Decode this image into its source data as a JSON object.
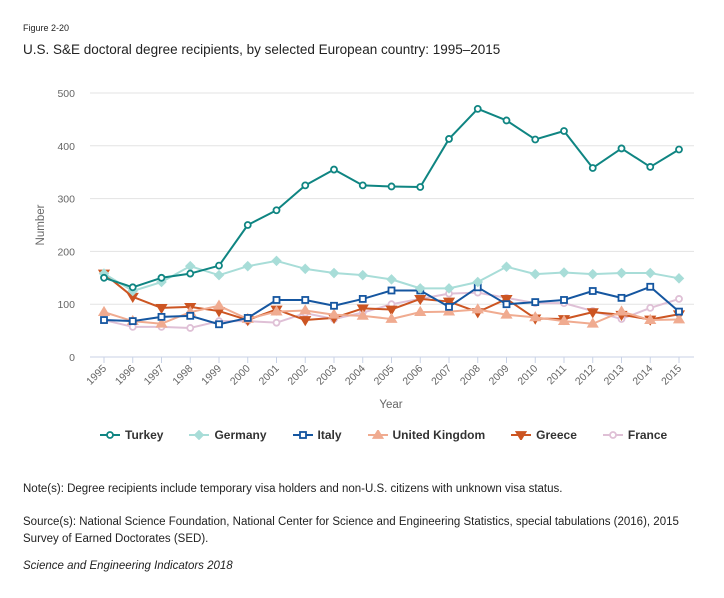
{
  "figure_label": "Figure 2-20",
  "title": "U.S. S&E doctoral degree recipients, by selected European country: 1995–2015",
  "note": "Note(s): Degree recipients include temporary visa holders and non-U.S. citizens with unknown visa status.",
  "source": "Source(s): National Science Foundation, National Center for Science and Engineering Statistics, special tabulations (2016), 2015 Survey of Earned Doctorates (SED).",
  "credit": "Science and Engineering Indicators 2018",
  "chart_data": {
    "type": "line",
    "title": "U.S. S&E doctoral degree recipients, by selected European country: 1995–2015",
    "xlabel": "Year",
    "ylabel": "Number",
    "ylim": [
      0,
      500
    ],
    "yticks": [
      0,
      100,
      200,
      300,
      400,
      500
    ],
    "grid": true,
    "legend_position": "bottom",
    "x": [
      "1995",
      "1996",
      "1997",
      "1998",
      "1999",
      "2000",
      "2001",
      "2002",
      "2003",
      "2004",
      "2005",
      "2006",
      "2007",
      "2008",
      "2009",
      "2010",
      "2011",
      "2012",
      "2013",
      "2014",
      "2015"
    ],
    "series": [
      {
        "name": "Turkey",
        "color": "#0f8582",
        "marker": "circle",
        "values": [
          150,
          132,
          150,
          158,
          173,
          250,
          278,
          325,
          355,
          325,
          323,
          322,
          413,
          470,
          448,
          412,
          428,
          358,
          395,
          360,
          393
        ]
      },
      {
        "name": "Germany",
        "color": "#a8ddd8",
        "marker": "diamond",
        "values": [
          158,
          125,
          142,
          172,
          155,
          172,
          182,
          167,
          159,
          155,
          147,
          130,
          130,
          142,
          171,
          157,
          160,
          157,
          159,
          159,
          149
        ]
      },
      {
        "name": "Italy",
        "color": "#1556a0",
        "marker": "square",
        "values": [
          70,
          68,
          76,
          78,
          62,
          74,
          108,
          108,
          97,
          110,
          126,
          126,
          95,
          132,
          100,
          104,
          108,
          125,
          112,
          133,
          86
        ]
      },
      {
        "name": "United Kingdom",
        "color": "#f0ab90",
        "marker": "triangle-up",
        "values": [
          85,
          68,
          63,
          85,
          97,
          72,
          86,
          88,
          80,
          78,
          72,
          85,
          86,
          90,
          80,
          75,
          68,
          63,
          86,
          70,
          71
        ]
      },
      {
        "name": "Greece",
        "color": "#cc5522",
        "marker": "triangle-down",
        "values": [
          158,
          114,
          93,
          95,
          87,
          70,
          90,
          70,
          74,
          92,
          90,
          110,
          105,
          85,
          110,
          73,
          72,
          85,
          80,
          71,
          81
        ]
      },
      {
        "name": "France",
        "color": "#dfc0d6",
        "marker": "circle",
        "values": [
          70,
          57,
          57,
          55,
          68,
          68,
          65,
          83,
          72,
          84,
          100,
          110,
          120,
          122,
          112,
          102,
          102,
          87,
          72,
          93,
          110
        ]
      }
    ]
  }
}
